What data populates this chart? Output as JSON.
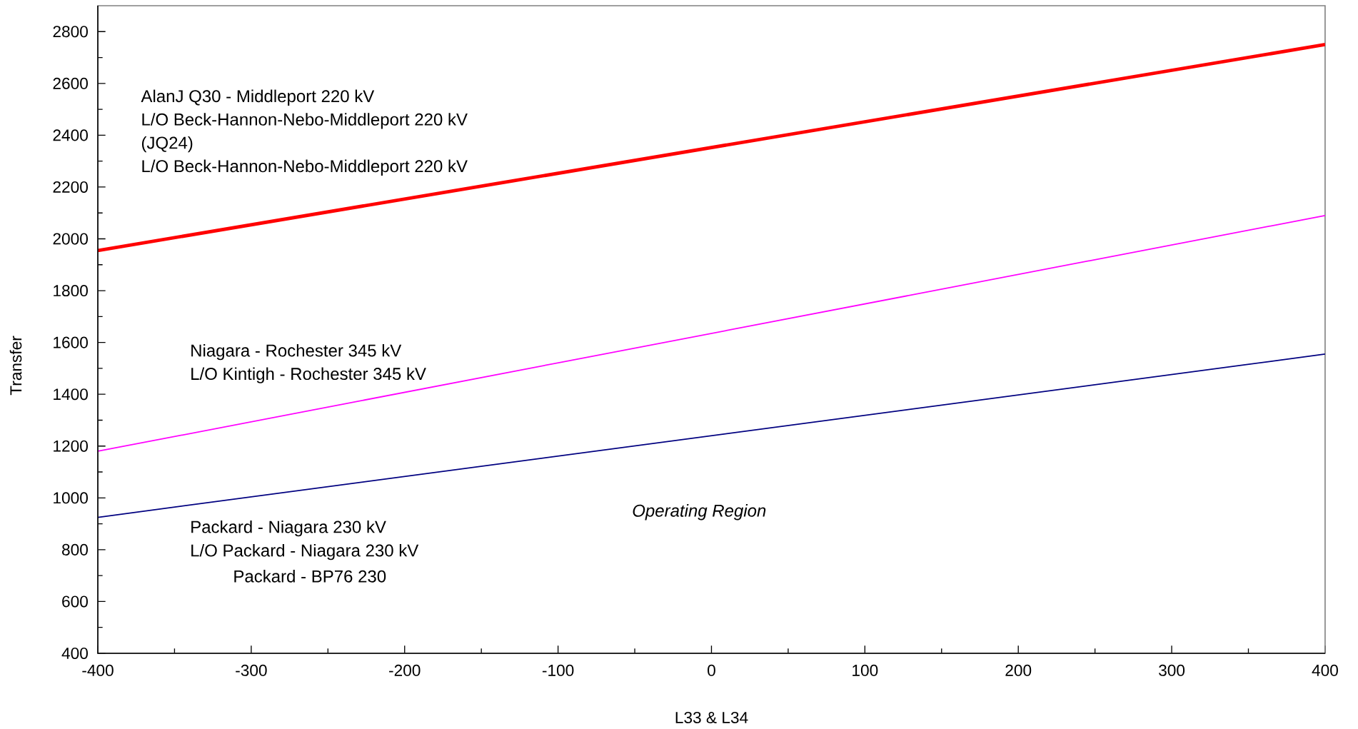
{
  "chart_data": {
    "type": "line",
    "xlabel": "L33 & L34",
    "ylabel": "Transfer",
    "x": [
      -400,
      400
    ],
    "series": [
      {
        "color": "#ff0000",
        "values": [
          1955,
          2750
        ]
      },
      {
        "color": "#ff00ff",
        "values": [
          1180,
          2090
        ]
      },
      {
        "color": "#000080",
        "values": [
          925,
          1555
        ]
      }
    ],
    "xlim": [
      -400,
      400
    ],
    "ylim": [
      400,
      2900
    ],
    "xticks": [
      -400,
      -300,
      -200,
      -100,
      0,
      100,
      200,
      300,
      400
    ],
    "yticks": [
      400,
      600,
      800,
      1000,
      1200,
      1400,
      1600,
      1800,
      2000,
      2200,
      2400,
      2600,
      2800
    ],
    "grid": false,
    "marker": "none",
    "line_style": "solid",
    "annotations": [
      "AlanJ Q30 - Middleport 220 kV",
      "L/O Beck-Hannon-Nebo-Middleport 220 kV",
      "(JQ24)",
      "L/O Beck-Hannon-Nebo-Middleport 220 kV",
      "Niagara - Rochester 345 kV",
      "L/O Kintigh - Rochester 345 kV",
      "Packard - Niagara 230 kV",
      "L/O Packard - Niagara 230 kV",
      "Packard - BP76 230",
      "Operating Region"
    ]
  }
}
